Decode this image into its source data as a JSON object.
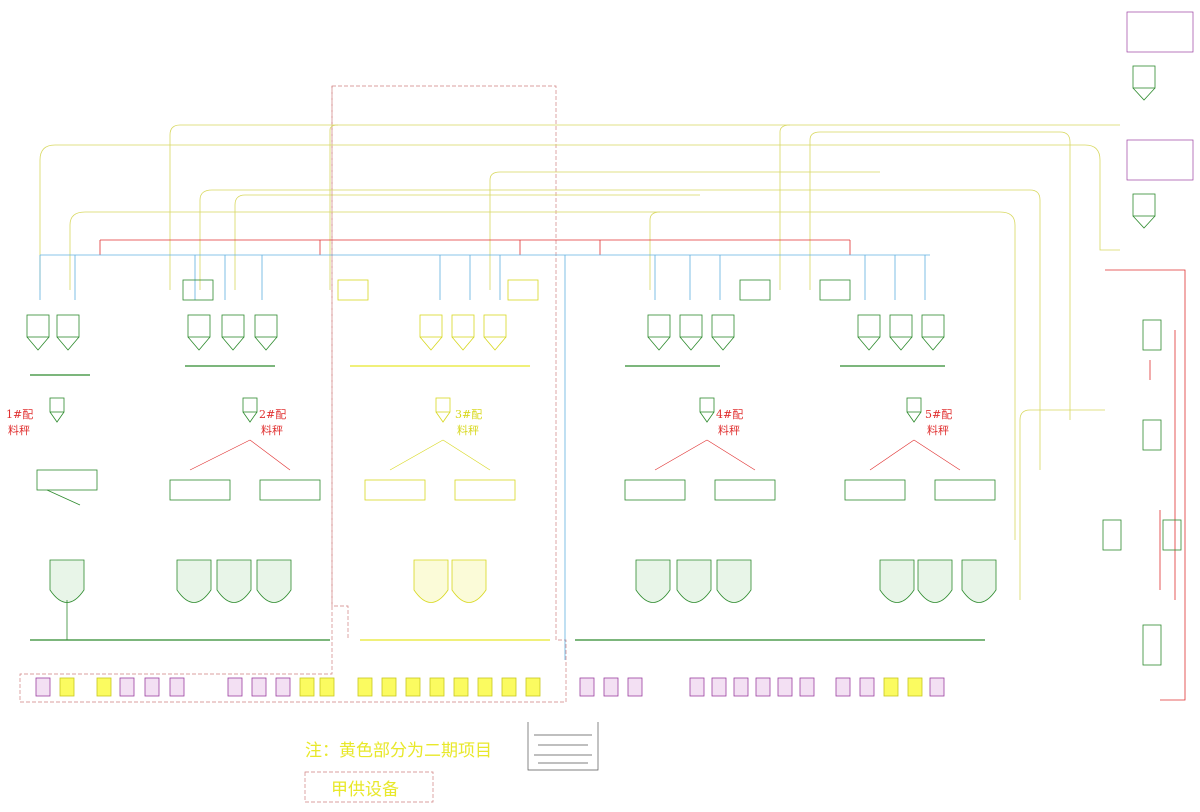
{
  "colors": {
    "equipment": "#2e8b2e",
    "phase2": "#e8e82a",
    "pipe_yellow": "#e0e070",
    "pipe_red": "#e03030",
    "pipe_blue": "#60b0e0",
    "dashed": "#d08080",
    "purple": "#9b3fa0",
    "label_red": "#e03030",
    "legend_text": "#e8e82a"
  },
  "scales": [
    {
      "id": "1",
      "label_a": "1#配",
      "label_b": "料秤"
    },
    {
      "id": "2",
      "label_a": "2#配",
      "label_b": "料秤"
    },
    {
      "id": "3",
      "label_a": "3#配",
      "label_b": "料秤"
    },
    {
      "id": "4",
      "label_a": "4#配",
      "label_b": "料秤"
    },
    {
      "id": "5",
      "label_a": "5#配",
      "label_b": "料秤"
    }
  ],
  "notes": {
    "phase2_note": "注：黄色部分为二期项目",
    "supplied_by_owner": "甲供设备"
  }
}
